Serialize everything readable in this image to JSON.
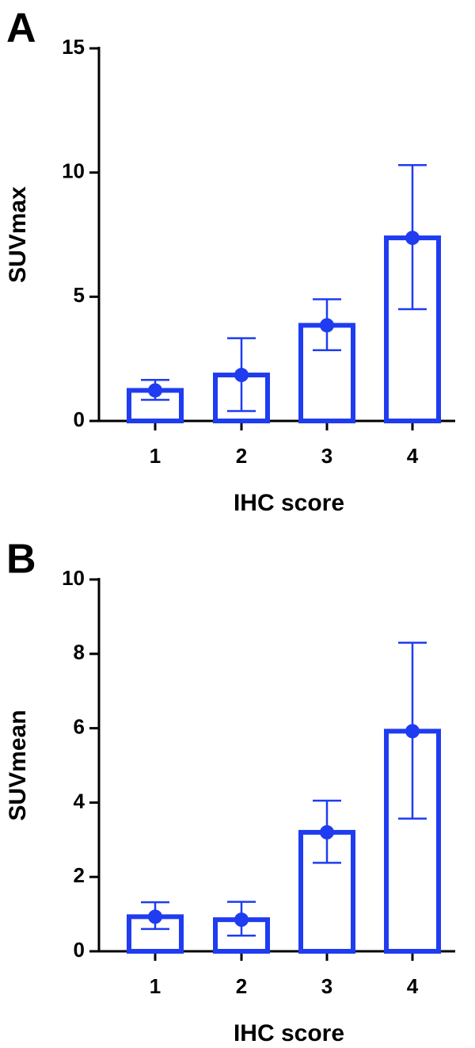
{
  "chart_data": [
    {
      "type": "bar",
      "panel_label": "A",
      "y_label": "SUVmax",
      "x_label": "IHC score",
      "categories": [
        "1",
        "2",
        "3",
        "4"
      ],
      "values": [
        1.23,
        1.85,
        3.85,
        7.37
      ],
      "lower": [
        0.85,
        0.4,
        2.85,
        4.5
      ],
      "upper": [
        1.65,
        3.33,
        4.9,
        10.3
      ],
      "color": "#1f3cf0",
      "ylim": [
        0,
        15
      ],
      "yticks": [
        0,
        5,
        10,
        15
      ]
    },
    {
      "type": "bar",
      "panel_label": "B",
      "y_label": "SUVmean",
      "x_label": "IHC score",
      "categories": [
        "1",
        "2",
        "3",
        "4"
      ],
      "values": [
        0.93,
        0.85,
        3.2,
        5.92
      ],
      "lower": [
        0.6,
        0.42,
        2.38,
        3.57
      ],
      "upper": [
        1.32,
        1.33,
        4.05,
        8.3
      ],
      "color": "#1f3cf0",
      "ylim": [
        0,
        10
      ],
      "yticks": [
        0,
        2,
        4,
        6,
        8,
        10
      ]
    }
  ]
}
